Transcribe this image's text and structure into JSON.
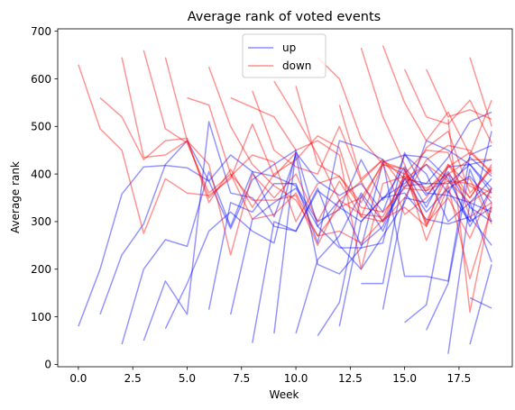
{
  "chart_data": {
    "type": "line",
    "title": "Average rank of voted events",
    "xlabel": "Week",
    "ylabel": "Average rank",
    "xlim": [
      -0.95,
      19.95
    ],
    "ylim": [
      -5,
      705
    ],
    "xticks": [
      0,
      2.5,
      5,
      7.5,
      10,
      12.5,
      15,
      17.5
    ],
    "xtick_labels": [
      "0.0",
      "2.5",
      "5.0",
      "7.5",
      "10.0",
      "12.5",
      "15.0",
      "17.5"
    ],
    "yticks": [
      0,
      100,
      200,
      300,
      400,
      500,
      600,
      700
    ],
    "ytick_labels": [
      "0",
      "100",
      "200",
      "300",
      "400",
      "500",
      "600",
      "700"
    ],
    "grid": false,
    "legend_position": "top-center",
    "series": [
      {
        "name": "up",
        "color": "#0000ff",
        "lines": [
          {
            "x": [
              0,
              1,
              2,
              3,
              4,
              5,
              6,
              7,
              8,
              9,
              10
            ],
            "y": [
              80,
              200,
              358,
              415,
              418,
              413,
              385,
              285,
              388,
              420,
              450
            ]
          },
          {
            "x": [
              1,
              2,
              3,
              4,
              5,
              6,
              7,
              8,
              9,
              10,
              11,
              12,
              13,
              14,
              15,
              16,
              17,
              18,
              19
            ],
            "y": [
              105,
              230,
              295,
              420,
              470,
              385,
              440,
              405,
              395,
              375,
              300,
              325,
              430,
              345,
              415,
              355,
              405,
              330,
              300
            ]
          },
          {
            "x": [
              2,
              3,
              4,
              5,
              6,
              7,
              8,
              9,
              10,
              11,
              12,
              13,
              14,
              15,
              16,
              17,
              18,
              19
            ],
            "y": [
              42,
              200,
              262,
              248,
              405,
              290,
              405,
              310,
              440,
              210,
              190,
              245,
              425,
              440,
              435,
              390,
              300,
              490
            ]
          },
          {
            "x": [
              3,
              4,
              5,
              6,
              7,
              8,
              9,
              10,
              11,
              12,
              13,
              14,
              15,
              16,
              17,
              18,
              19
            ],
            "y": [
              50,
              175,
              105,
              510,
              360,
              350,
              290,
              280,
              370,
              250,
              200,
              270,
              340,
              470,
              450,
              420,
              370
            ]
          },
          {
            "x": [
              4,
              5,
              6,
              7,
              8,
              9,
              10,
              11,
              12,
              13,
              14,
              15,
              16,
              17,
              18,
              19
            ],
            "y": [
              75,
              170,
              280,
              320,
              280,
              255,
              445,
              385,
              355,
              380,
              320,
              440,
              400,
              300,
              340,
              390
            ]
          },
          {
            "x": [
              6,
              7,
              8,
              9,
              10,
              11,
              12,
              13,
              14,
              15,
              16,
              17,
              18,
              19
            ],
            "y": [
              115,
              340,
              320,
              380,
              380,
              255,
              470,
              455,
              430,
              185,
              185,
              175,
              440,
              460
            ]
          },
          {
            "x": [
              7,
              8,
              9,
              10,
              11,
              12,
              13,
              14,
              15,
              16,
              17,
              18,
              19
            ],
            "y": [
              105,
              305,
              340,
              370,
              290,
              345,
              250,
              290,
              390,
              380,
              380,
              420,
              430
            ]
          },
          {
            "x": [
              8,
              9,
              10,
              11,
              12,
              13,
              14,
              15,
              16,
              17,
              18,
              19
            ],
            "y": [
              45,
              300,
              280,
              365,
              330,
              300,
              350,
              360,
              305,
              295,
              310,
              250
            ]
          },
          {
            "x": [
              9,
              10,
              11,
              12,
              13,
              14,
              15,
              16,
              17,
              18,
              19
            ],
            "y": [
              65,
              450,
              290,
              245,
              245,
              255,
              445,
              360,
              355,
              340,
              320
            ]
          },
          {
            "x": [
              10,
              11,
              12,
              13,
              14,
              15,
              16,
              17,
              18,
              19
            ],
            "y": [
              65,
              220,
              270,
              360,
              300,
              375,
              380,
              435,
              510,
              530
            ]
          },
          {
            "x": [
              11,
              12,
              13,
              14,
              15,
              16,
              17,
              18,
              19
            ],
            "y": [
              60,
              130,
              355,
              280,
              390,
              320,
              370,
              395,
              340
            ]
          },
          {
            "x": [
              12,
              13,
              14,
              15,
              16,
              17,
              18,
              19
            ],
            "y": [
              80,
              300,
              350,
              380,
              420,
              360,
              435,
              395
            ]
          },
          {
            "x": [
              13,
              14,
              15,
              16,
              17,
              18,
              19
            ],
            "y": [
              170,
              170,
              410,
              330,
              415,
              420,
              360
            ]
          },
          {
            "x": [
              14,
              15,
              16,
              17,
              18,
              19
            ],
            "y": [
              115,
              350,
              340,
              400,
              290,
              370
            ]
          },
          {
            "x": [
              15,
              16,
              17,
              18,
              19
            ],
            "y": [
              88,
              125,
              365,
              300,
              330
            ]
          },
          {
            "x": [
              16,
              17,
              18,
              19
            ],
            "y": [
              72,
              170,
              410,
              300
            ]
          },
          {
            "x": [
              17,
              18,
              19
            ],
            "y": [
              22,
              340,
              215
            ]
          },
          {
            "x": [
              18,
              19
            ],
            "y": [
              42,
              210
            ]
          },
          {
            "x": [
              18,
              19
            ],
            "y": [
              140,
              118
            ]
          }
        ]
      },
      {
        "name": "down",
        "color": "#ff0000",
        "lines": [
          {
            "x": [
              0,
              1,
              2,
              3,
              4,
              5,
              6,
              7,
              8,
              9,
              10
            ],
            "y": [
              630,
              495,
              450,
              275,
              390,
              360,
              355,
              390,
              505,
              395,
              445
            ]
          },
          {
            "x": [
              1,
              2,
              3,
              4,
              5,
              6,
              7,
              8,
              9,
              10,
              11,
              12,
              13,
              14,
              15,
              16,
              17,
              18,
              19
            ],
            "y": [
              560,
              520,
              430,
              470,
              475,
              340,
              410,
              330,
              400,
              430,
              480,
              455,
              310,
              420,
              315,
              350,
              420,
              350,
              420
            ]
          },
          {
            "x": [
              2,
              3,
              4,
              5,
              6,
              7,
              8,
              9,
              10,
              11,
              12,
              13,
              14,
              15,
              16,
              17,
              18,
              19
            ],
            "y": [
              645,
              435,
              440,
              470,
              350,
              395,
              440,
              425,
              300,
              380,
              395,
              330,
              320,
              370,
              365,
              385,
              340,
              370
            ]
          },
          {
            "x": [
              3,
              4,
              5,
              6,
              7,
              8,
              9,
              10,
              11,
              12,
              13,
              14,
              15,
              16,
              17,
              18,
              19
            ],
            "y": [
              660,
              495,
              465,
              360,
              400,
              345,
              345,
              355,
              250,
              345,
              315,
              310,
              395,
              300,
              400,
              350,
              415
            ]
          },
          {
            "x": [
              4,
              5,
              6,
              7,
              8,
              9,
              10,
              11,
              12,
              13,
              14,
              15,
              16,
              17,
              18,
              19
            ],
            "y": [
              645,
              470,
              420,
              230,
              400,
              350,
              400,
              300,
              385,
              310,
              300,
              350,
              430,
              460,
              450,
              400
            ]
          },
          {
            "x": [
              5,
              6,
              7,
              8,
              9,
              10,
              11,
              12,
              13,
              14,
              15,
              16,
              17,
              18,
              19
            ],
            "y": [
              560,
              545,
              400,
              305,
              315,
              360,
              270,
              330,
              350,
              420,
              400,
              450,
              445,
              310,
              340
            ]
          },
          {
            "x": [
              6,
              7,
              8,
              9,
              10,
              11,
              12,
              13,
              14,
              15,
              16,
              17,
              18,
              19
            ],
            "y": [
              625,
              500,
              420,
              375,
              345,
              270,
              280,
              255,
              305,
              330,
              290,
              380,
              390,
              295
            ]
          },
          {
            "x": [
              7,
              8,
              9,
              10,
              11,
              12,
              13,
              14,
              15,
              16,
              17,
              18,
              19
            ],
            "y": [
              560,
              540,
              520,
              450,
              470,
              440,
              200,
              380,
              395,
              370,
              400,
              430,
              430
            ]
          },
          {
            "x": [
              8,
              9,
              10,
              11,
              12,
              13,
              14,
              15,
              16,
              17,
              18,
              19
            ],
            "y": [
              575,
              450,
              415,
              400,
              500,
              385,
              430,
              390,
              420,
              385,
              380,
              360
            ]
          },
          {
            "x": [
              9,
              10,
              11,
              12,
              13,
              14,
              15,
              16,
              17,
              18,
              19
            ],
            "y": [
              595,
              520,
              440,
              345,
              385,
              300,
              400,
              365,
              415,
              445,
              405
            ]
          },
          {
            "x": [
              10,
              11,
              12,
              13,
              14,
              15,
              16,
              17,
              18,
              19
            ],
            "y": [
              585,
              420,
              395,
              340,
              425,
              410,
              295,
              350,
              265,
              370
            ]
          },
          {
            "x": [
              11,
              12,
              13,
              14,
              15,
              16,
              17,
              18,
              19
            ],
            "y": [
              645,
              600,
              475,
              420,
              410,
              260,
              375,
              180,
              330
            ]
          },
          {
            "x": [
              12,
              13,
              14,
              15,
              16,
              17,
              18,
              19
            ],
            "y": [
              545,
              390,
              430,
              370,
              455,
              490,
              360,
              410
            ]
          },
          {
            "x": [
              13,
              14,
              15,
              16,
              17,
              18,
              19
            ],
            "y": [
              665,
              520,
              420,
              290,
              420,
              375,
              350
            ]
          },
          {
            "x": [
              14,
              15,
              16,
              17,
              18,
              19
            ],
            "y": [
              670,
              550,
              470,
              530,
              440,
              555
            ]
          },
          {
            "x": [
              15,
              16,
              17,
              18,
              19
            ],
            "y": [
              620,
              520,
              505,
              555,
              465
            ]
          },
          {
            "x": [
              16,
              17,
              18,
              19
            ],
            "y": [
              620,
              520,
              535,
              515
            ]
          },
          {
            "x": [
              17,
              18,
              19
            ],
            "y": [
              515,
              110,
              340
            ]
          },
          {
            "x": [
              18,
              19
            ],
            "y": [
              645,
              500
            ]
          }
        ]
      }
    ]
  }
}
